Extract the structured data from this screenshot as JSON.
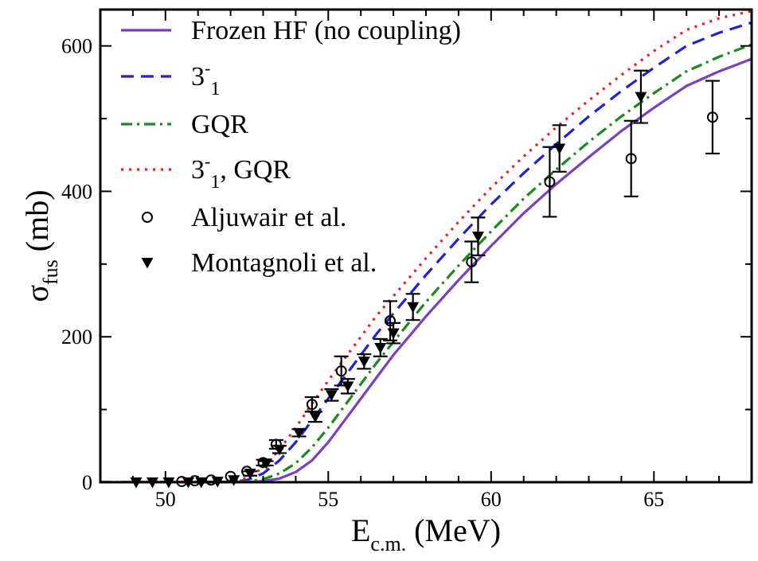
{
  "chart_data": {
    "type": "line",
    "xlabel": {
      "main": "E",
      "sub": "c.m.",
      "unit": " (MeV)"
    },
    "ylabel": {
      "main": "σ",
      "sub": "fus",
      "unit": "  (mb)"
    },
    "xlim": [
      48,
      68
    ],
    "ylim": [
      0,
      650
    ],
    "x_ticks": [
      50,
      55,
      60,
      65
    ],
    "y_ticks": [
      0,
      200,
      400,
      600
    ],
    "grid": false,
    "legend_position": "top-left",
    "series": [
      {
        "name": "Frozen HF (no coupling)",
        "legend": {
          "parts": [
            {
              "t": "Frozen HF (no coupling)"
            }
          ]
        },
        "style": "solid",
        "color": "#7b3fbf",
        "x": [
          48,
          52,
          52.5,
          53,
          53.5,
          54,
          54.5,
          55,
          55.5,
          56,
          56.5,
          57,
          58,
          59,
          60,
          61,
          62,
          63,
          64,
          65,
          66,
          67,
          68
        ],
        "y": [
          0,
          0,
          0.3,
          1.5,
          5,
          14,
          30,
          55,
          85,
          115,
          145,
          175,
          228,
          278,
          325,
          370,
          410,
          447,
          483,
          515,
          545,
          565,
          582
        ]
      },
      {
        "name": "3-1",
        "legend": {
          "parts": [
            {
              "t": "3"
            },
            {
              "t": "-",
              "sup": true
            },
            {
              "t": "1",
              "sub": true
            }
          ]
        },
        "style": "dash",
        "color": "#1f22d6",
        "x": [
          48,
          52,
          52.5,
          53,
          53.5,
          54,
          54.5,
          55,
          55.5,
          56,
          56.5,
          57,
          58,
          59,
          60,
          61,
          62,
          63,
          64,
          65,
          66,
          67,
          68
        ],
        "y": [
          0,
          0.5,
          3,
          12,
          30,
          55,
          85,
          115,
          145,
          175,
          205,
          232,
          285,
          335,
          382,
          425,
          465,
          503,
          538,
          570,
          600,
          618,
          632
        ]
      },
      {
        "name": "GQR",
        "legend": {
          "parts": [
            {
              "t": "GQR"
            }
          ]
        },
        "style": "dashdot",
        "color": "#1a8a1a",
        "x": [
          48,
          52,
          52.5,
          53,
          53.5,
          54,
          54.5,
          55,
          55.5,
          56,
          56.5,
          57,
          58,
          59,
          60,
          61,
          62,
          63,
          64,
          65,
          66,
          67,
          68
        ],
        "y": [
          0,
          0.2,
          1,
          4,
          12,
          26,
          48,
          75,
          105,
          135,
          165,
          193,
          248,
          298,
          345,
          390,
          430,
          468,
          503,
          535,
          565,
          585,
          602
        ]
      },
      {
        "name": "3-1, GQR",
        "legend": {
          "parts": [
            {
              "t": "3"
            },
            {
              "t": "-",
              "sup": true
            },
            {
              "t": "1",
              "sub": true
            },
            {
              "t": ", GQR"
            }
          ]
        },
        "style": "dot",
        "color": "#e61e1e",
        "x": [
          48,
          52,
          52.5,
          53,
          53.5,
          54,
          54.5,
          55,
          55.5,
          56,
          56.5,
          57,
          58,
          59,
          60,
          61,
          62,
          63,
          64,
          65,
          66,
          67,
          68
        ],
        "y": [
          0,
          1,
          6,
          20,
          45,
          75,
          108,
          140,
          170,
          200,
          230,
          256,
          308,
          358,
          405,
          448,
          488,
          525,
          560,
          593,
          622,
          638,
          648
        ]
      }
    ],
    "points": [
      {
        "name": "Aljuwair et al.",
        "legend": {
          "parts": [
            {
              "t": "Aljuwair et al."
            }
          ]
        },
        "marker": "circle",
        "x": [
          50.5,
          50.9,
          51.4,
          52.0,
          52.5,
          53.0,
          53.4,
          54.5,
          55.4,
          56.9,
          59.4,
          61.8,
          64.3,
          66.8
        ],
        "y": [
          1,
          2,
          3,
          8,
          15,
          27,
          52,
          107,
          153,
          222,
          303,
          413,
          445,
          502
        ],
        "err": [
          0,
          0,
          0,
          0,
          0,
          4,
          6,
          10,
          20,
          27,
          28,
          48,
          52,
          50
        ]
      },
      {
        "name": "Montagnoli et al.",
        "legend": {
          "parts": [
            {
              "t": "Montagnoli et al."
            }
          ]
        },
        "marker": "triangle-down",
        "x": [
          49.1,
          49.6,
          50.1,
          50.7,
          51.1,
          51.6,
          52.1,
          52.6,
          53.1,
          53.5,
          54.1,
          54.6,
          55.1,
          55.6,
          56.1,
          56.6,
          57.0,
          57.6,
          59.6,
          62.1,
          64.6
        ],
        "y": [
          0,
          0,
          0,
          0,
          0,
          1,
          3,
          12,
          26,
          45,
          68,
          90,
          120,
          132,
          166,
          185,
          205,
          241,
          338,
          459,
          530
        ],
        "err": [
          0,
          0,
          0,
          0,
          0,
          0,
          0,
          3,
          3,
          5,
          5,
          7,
          8,
          10,
          10,
          12,
          14,
          18,
          26,
          32,
          36
        ]
      }
    ]
  }
}
